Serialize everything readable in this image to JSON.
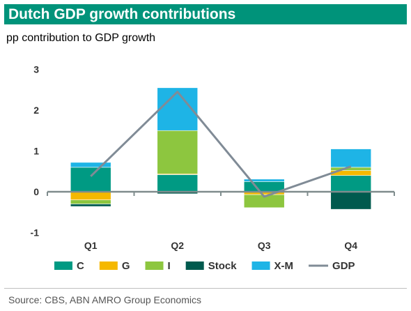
{
  "header": {
    "title": "Dutch GDP growth contributions",
    "subtitle": "pp contribution to GDP growth"
  },
  "footer": {
    "source": "Source: CBS, ABN AMRO Group Economics"
  },
  "chart_data": {
    "type": "bar",
    "stacked": true,
    "categories": [
      "Q1",
      "Q2",
      "Q3",
      "Q4"
    ],
    "series": [
      {
        "name": "C",
        "color": "#009a83",
        "values": [
          0.6,
          0.42,
          0.25,
          0.4
        ]
      },
      {
        "name": "G",
        "color": "#f5b800",
        "values": [
          -0.2,
          0.02,
          -0.07,
          0.12
        ]
      },
      {
        "name": "I",
        "color": "#8dc63f",
        "values": [
          -0.1,
          1.06,
          -0.32,
          0.08
        ]
      },
      {
        "name": "Stock",
        "color": "#005a4e",
        "values": [
          -0.06,
          -0.05,
          -0.01,
          -0.43
        ]
      },
      {
        "name": "X-M",
        "color": "#1eb4e6",
        "values": [
          0.12,
          1.05,
          0.06,
          0.45
        ]
      }
    ],
    "line": {
      "name": "GDP",
      "color": "#808b96",
      "values": [
        0.38,
        2.45,
        -0.12,
        0.62
      ]
    },
    "ylim": [
      -1,
      3
    ],
    "yticks": [
      -1,
      0,
      1,
      2,
      3
    ],
    "grid": false,
    "legend_position": "bottom"
  }
}
